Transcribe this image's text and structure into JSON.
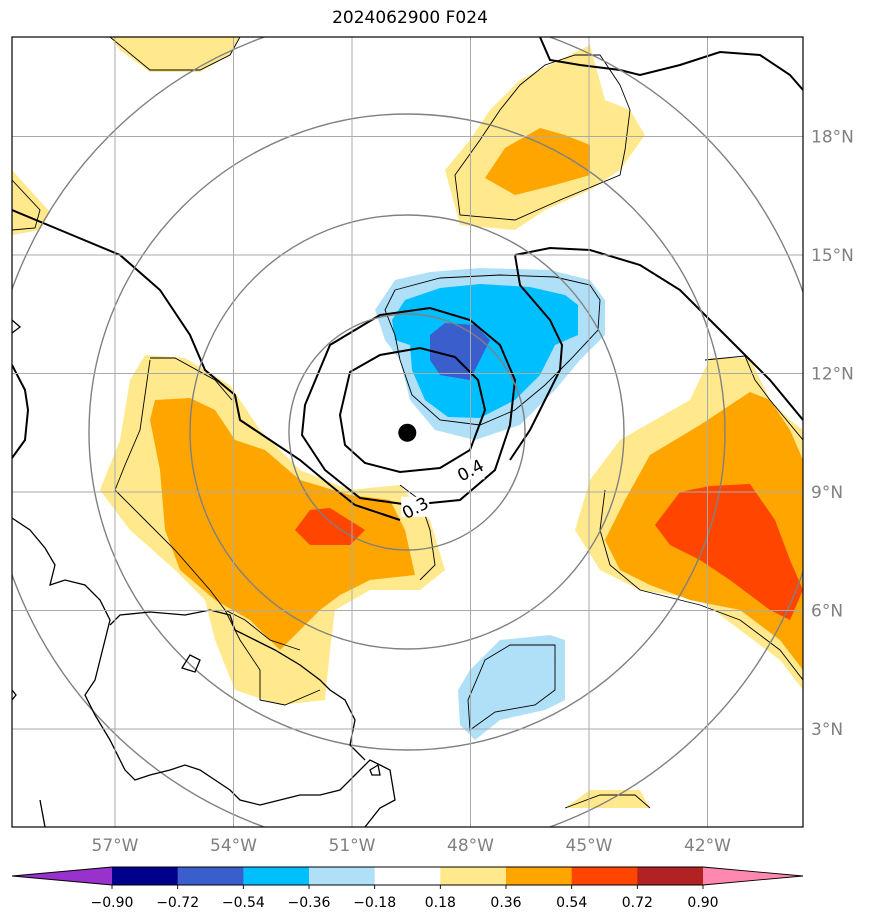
{
  "title": "2024062900 F024",
  "map": {
    "lon_labels": [
      {
        "lon": -57,
        "label": "57°W"
      },
      {
        "lon": -54,
        "label": "54°W"
      },
      {
        "lon": -51,
        "label": "51°W"
      },
      {
        "lon": -48,
        "label": "48°W"
      },
      {
        "lon": -45,
        "label": "45°W"
      },
      {
        "lon": -42,
        "label": "42°W"
      }
    ],
    "lat_labels": [
      {
        "lat": 18,
        "label": "18°N"
      },
      {
        "lat": 15,
        "label": "15°N"
      },
      {
        "lat": 12,
        "label": "12°N"
      },
      {
        "lat": 9,
        "label": "9°N"
      },
      {
        "lat": 6,
        "label": "6°N"
      },
      {
        "lat": 3,
        "label": "3°N"
      }
    ],
    "center_marker": {
      "lon": -49.6,
      "lat": 10.5
    },
    "contour_labels": [
      {
        "text": "0.4",
        "lon": -48.0,
        "lat": 9.55
      },
      {
        "text": "0.3",
        "lon": -49.4,
        "lat": 8.6
      }
    ],
    "grid_color": "#aaaaaa",
    "range_ring_color": "#808080",
    "coastline_color": "#000000"
  },
  "colorbar": {
    "ticks": [
      "−0.90",
      "−0.72",
      "−0.54",
      "−0.36",
      "−0.18",
      "0.18",
      "0.36",
      "0.54",
      "0.72",
      "0.90"
    ],
    "colors": [
      "#9932cc",
      "#00008b",
      "#3a5fcd",
      "#00bfff",
      "#b0e0f8",
      "#ffffff",
      "#ffe98c",
      "#ffa500",
      "#ff4500",
      "#b22222",
      "#ff88b0"
    ]
  },
  "fill_colors": {
    "neg_036": "#b0e0f8",
    "neg_054": "#00bfff",
    "neg_072": "#3a5fcd",
    "pos_018": "#ffe98c",
    "pos_036": "#ffa500",
    "pos_054": "#ff4500"
  }
}
